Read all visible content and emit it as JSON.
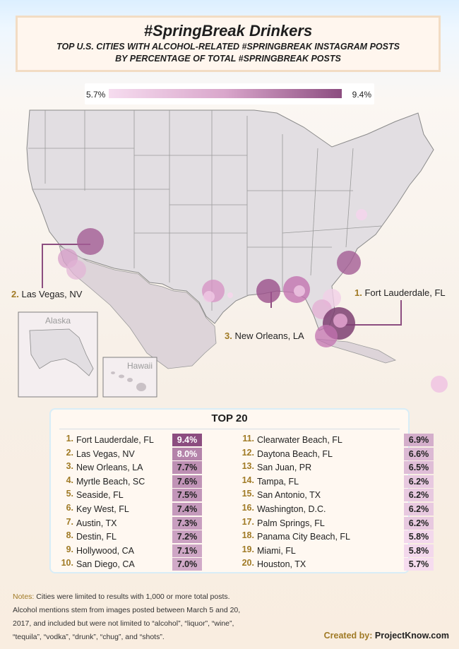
{
  "header": {
    "title": "#SpringBreak Drinkers",
    "subtitle_line1": "TOP U.S. CITIES WITH ALCOHOL-RELATED #SPRINGBREAK INSTAGRAM POSTS",
    "subtitle_line2": "BY PERCENTAGE OF TOTAL #SPRINGBREAK POSTS"
  },
  "legend": {
    "min_label": "5.7%",
    "max_label": "9.4%",
    "min_color": "#f6dcef",
    "max_color": "#8c4d80"
  },
  "map": {
    "alaska_label": "Alaska",
    "hawaii_label": "Hawaii",
    "callouts": [
      {
        "rank": "1.",
        "city": "Fort Lauderdale, FL"
      },
      {
        "rank": "2.",
        "city": "Las Vegas, NV"
      },
      {
        "rank": "3.",
        "city": "New Orleans, LA"
      }
    ]
  },
  "chart_data": {
    "type": "table",
    "title": "TOP 20",
    "rows": [
      {
        "rank": "1.",
        "city": "Fort Lauderdale, FL",
        "label": "9.4%",
        "value": 9.4
      },
      {
        "rank": "2.",
        "city": "Las Vegas, NV",
        "label": "8.0%",
        "value": 8.0
      },
      {
        "rank": "3.",
        "city": "New Orleans, LA",
        "label": "7.7%",
        "value": 7.7
      },
      {
        "rank": "4.",
        "city": "Myrtle Beach, SC",
        "label": "7.6%",
        "value": 7.6
      },
      {
        "rank": "5.",
        "city": "Seaside, FL",
        "label": "7.5%",
        "value": 7.5
      },
      {
        "rank": "6.",
        "city": "Key West, FL",
        "label": "7.4%",
        "value": 7.4
      },
      {
        "rank": "7.",
        "city": "Austin, TX",
        "label": "7.3%",
        "value": 7.3
      },
      {
        "rank": "8.",
        "city": "Destin, FL",
        "label": "7.2%",
        "value": 7.2
      },
      {
        "rank": "9.",
        "city": "Hollywood, CA",
        "label": "7.1%",
        "value": 7.1
      },
      {
        "rank": "10.",
        "city": "San Diego, CA",
        "label": "7.0%",
        "value": 7.0
      },
      {
        "rank": "11.",
        "city": "Clearwater Beach, FL",
        "label": "6.9%",
        "value": 6.9
      },
      {
        "rank": "12.",
        "city": "Daytona Beach, FL",
        "label": "6.6%",
        "value": 6.6
      },
      {
        "rank": "13.",
        "city": "San Juan, PR",
        "label": "6.5%",
        "value": 6.5
      },
      {
        "rank": "14.",
        "city": "Tampa, FL",
        "label": "6.2%",
        "value": 6.2
      },
      {
        "rank": "15.",
        "city": "San Antonio, TX",
        "label": "6.2%",
        "value": 6.2
      },
      {
        "rank": "16.",
        "city": "Washington, D.C.",
        "label": "6.2%",
        "value": 6.2
      },
      {
        "rank": "17.",
        "city": "Palm Springs, FL",
        "label": "6.2%",
        "value": 6.2
      },
      {
        "rank": "18.",
        "city": "Panama City Beach, FL",
        "label": "5.8%",
        "value": 5.8
      },
      {
        "rank": "19.",
        "city": "Miami, FL",
        "label": "5.8%",
        "value": 5.8
      },
      {
        "rank": "20.",
        "city": "Houston, TX",
        "label": "5.7%",
        "value": 5.7
      }
    ]
  },
  "notes": {
    "label": "Notes:",
    "line1": " Cities were limited to results with 1,000 or more total posts.",
    "line2": "Alcohol mentions stem from images posted between March 5 and 20,",
    "line3": "2017, and included but were not limited to “alcohol”, “liquor”, “wine”,",
    "line4": "“tequila”, “vodka”, “drunk”, “chug”, and “shots”."
  },
  "credit": {
    "label": "Created by:",
    "name": "ProjectKnow.com"
  }
}
